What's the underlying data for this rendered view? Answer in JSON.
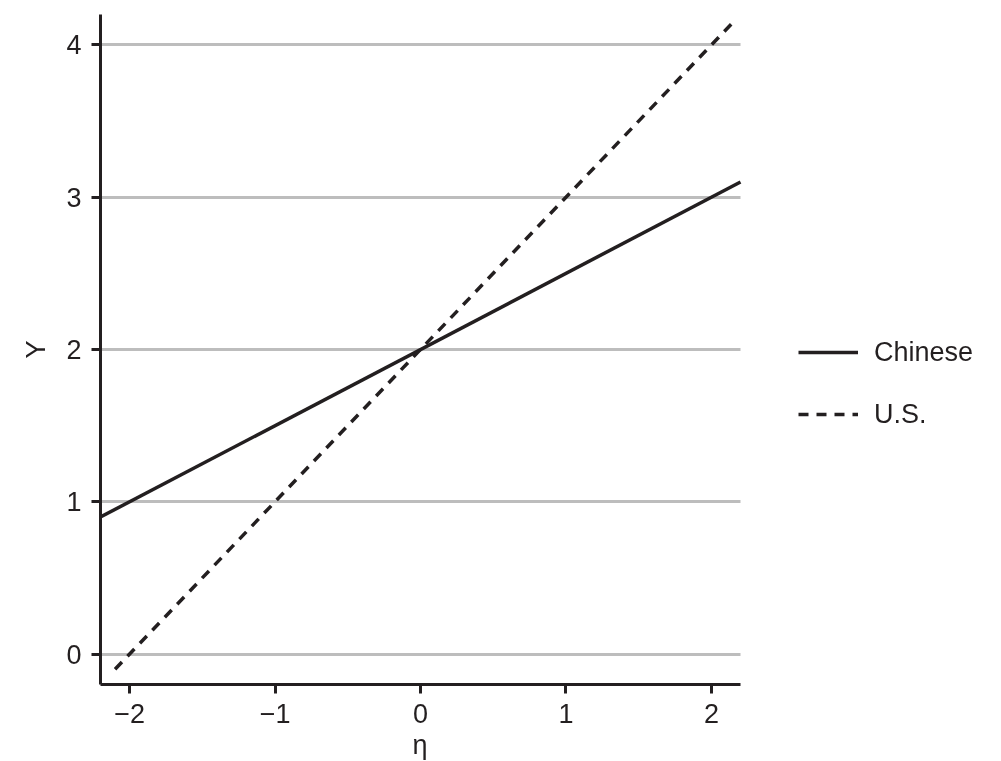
{
  "chart_data": {
    "type": "line",
    "xlabel": "η",
    "ylabel": "Y",
    "xlim": [
      -2.2,
      2.2
    ],
    "ylim": [
      -0.2,
      4.2
    ],
    "xticks": [
      {
        "value": -2,
        "label": "−2"
      },
      {
        "value": -1,
        "label": "−1"
      },
      0,
      1,
      2
    ],
    "yticks": [
      0,
      1,
      2,
      3,
      4
    ],
    "grid": "y",
    "legend": "right",
    "series": [
      {
        "name": "Chinese",
        "color": "#231f20",
        "line_style": "solid",
        "x": [
          -2.2,
          2.2
        ],
        "values": [
          0.9,
          3.1
        ]
      },
      {
        "name": "U.S.",
        "color": "#231f20",
        "line_style": "dashed",
        "x": [
          -2.1,
          2.15
        ],
        "values": [
          -0.1,
          4.15
        ]
      }
    ]
  }
}
